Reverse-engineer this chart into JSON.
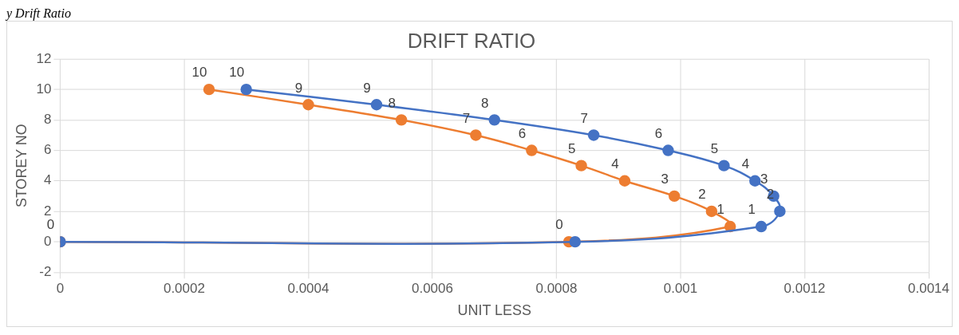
{
  "chart_data": {
    "type": "line",
    "title": "DRIFT RATIO",
    "xlabel": "UNIT LESS",
    "ylabel": "STOREY NO",
    "annotations": [
      "y Drift Ratio"
    ],
    "series": [
      {
        "color": "#4472c4",
        "x": [
          0,
          0.00083,
          0.00113,
          0.00116,
          0.00115,
          0.00112,
          0.00107,
          0.00098,
          0.00086,
          0.0007,
          0.00051,
          0.0003
        ],
        "values": [
          0,
          0,
          1,
          2,
          3,
          4,
          5,
          6,
          7,
          8,
          9,
          10
        ],
        "value_labels": [
          null,
          null,
          "1",
          "2",
          "3",
          "4",
          "5",
          "6",
          "7",
          "8",
          "9",
          "10"
        ]
      },
      {
        "color": "#ed7d31",
        "x": [
          0,
          0.00082,
          0.00108,
          0.00105,
          0.00099,
          0.00091,
          0.00084,
          0.00076,
          0.00067,
          0.00055,
          0.0004,
          0.00024
        ],
        "values": [
          0,
          0,
          1,
          2,
          3,
          4,
          5,
          6,
          7,
          8,
          9,
          10
        ],
        "value_labels": [
          "0",
          "0",
          "1",
          "2",
          "3",
          "4",
          "5",
          "6",
          "7",
          "8",
          "9",
          "10"
        ]
      }
    ],
    "xlim": [
      0,
      0.0014
    ],
    "xticks": [
      0,
      0.0002,
      0.0004,
      0.0006,
      0.0008,
      0.001,
      0.0012,
      0.0014
    ],
    "ylim": [
      -2,
      12
    ],
    "yticks": [
      -2,
      0,
      2,
      4,
      6,
      8,
      10,
      12
    ],
    "grid": true,
    "legend": false,
    "marker": "circle",
    "line_style": "solid"
  }
}
